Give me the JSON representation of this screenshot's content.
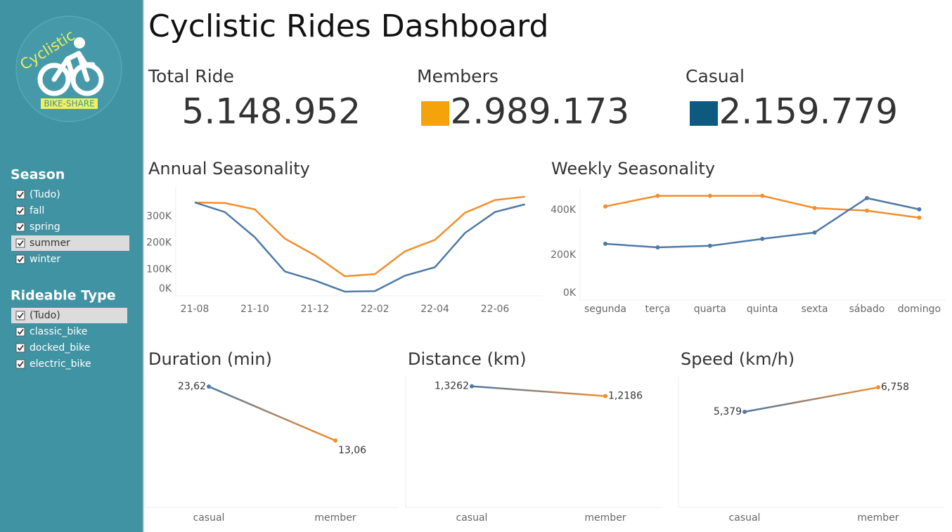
{
  "title": "Cyclistic Rides Dashboard",
  "logo": {
    "text": "Cyclistic",
    "tag": "BIKE-SHARE"
  },
  "filters": [
    {
      "title": "Season",
      "options": [
        "(Tudo)",
        "fall",
        "spring",
        "summer",
        "winter"
      ]
    },
    {
      "title": "Rideable Type",
      "options": [
        "(Tudo)",
        "classic_bike",
        "docked_bike",
        "electric_bike"
      ]
    }
  ],
  "kpis": [
    {
      "label": "Total Ride",
      "value": "5.148.952"
    },
    {
      "label": "Members",
      "value": "2.989.173",
      "color": "#f5a30a"
    },
    {
      "label": "Casual",
      "value": "2.159.779",
      "color": "#0c5a80"
    }
  ],
  "chart_data": [
    {
      "type": "line",
      "title": "Annual Seasonality",
      "categories": [
        "21-08",
        null,
        "21-10",
        null,
        "21-12",
        null,
        "22-02",
        null,
        "22-04",
        null,
        "22-06",
        null
      ],
      "series": [
        {
          "name": "member",
          "color": "#f28e2b",
          "values": [
            352000,
            350000,
            326000,
            216000,
            153000,
            74000,
            82000,
            168000,
            211000,
            313000,
            361000,
            374000
          ]
        },
        {
          "name": "casual",
          "color": "#4e79a7",
          "values": [
            352000,
            316000,
            221000,
            92000,
            58000,
            16000,
            18000,
            76000,
            108000,
            237000,
            316000,
            345000
          ]
        }
      ],
      "ylim": [
        0,
        400000
      ],
      "yticks": [
        {
          "value": 0,
          "label": "0K"
        },
        {
          "value": 100000,
          "label": "100K"
        },
        {
          "value": 200000,
          "label": "200K"
        },
        {
          "value": 300000,
          "label": "300K"
        }
      ],
      "markers": false
    },
    {
      "type": "line",
      "title": "Weekly Seasonality",
      "categories": [
        "segunda",
        "terça",
        "quarta",
        "quinta",
        "sexta",
        "sábado",
        "domingo"
      ],
      "series": [
        {
          "name": "member",
          "color": "#f28e2b",
          "values": [
            416000,
            463000,
            463000,
            463000,
            409000,
            397000,
            366000
          ]
        },
        {
          "name": "casual",
          "color": "#4e79a7",
          "values": [
            250000,
            234000,
            241000,
            272000,
            300000,
            453000,
            403000
          ]
        }
      ],
      "ylim": [
        0,
        490000
      ],
      "yticks": [
        {
          "value": 0,
          "label": "0K"
        },
        {
          "value": 200000,
          "label": "200K"
        },
        {
          "value": 400000,
          "label": "400K"
        }
      ],
      "markers": true
    },
    {
      "type": "slope",
      "title": "Duration (min)",
      "categories": [
        "casual",
        "member"
      ],
      "values": [
        23.62,
        13.06
      ],
      "value_labels": [
        "23,62",
        "13,06"
      ],
      "colors": [
        "#4e79a7",
        "#f28e2b"
      ],
      "ylim": [
        0,
        25
      ]
    },
    {
      "type": "slope",
      "title": "Distance (km)",
      "categories": [
        "casual",
        "member"
      ],
      "values": [
        1.3262,
        1.2186
      ],
      "value_labels": [
        "1,3262",
        "1,2186"
      ],
      "colors": [
        "#4e79a7",
        "#f28e2b"
      ],
      "ylim": [
        0,
        1.4
      ]
    },
    {
      "type": "slope",
      "title": "Speed (km/h)",
      "categories": [
        "casual",
        "member"
      ],
      "values": [
        5.379,
        6.758
      ],
      "value_labels": [
        "5,379",
        "6,758"
      ],
      "colors": [
        "#4e79a7",
        "#f28e2b"
      ],
      "ylim": [
        0,
        7.2
      ]
    }
  ]
}
